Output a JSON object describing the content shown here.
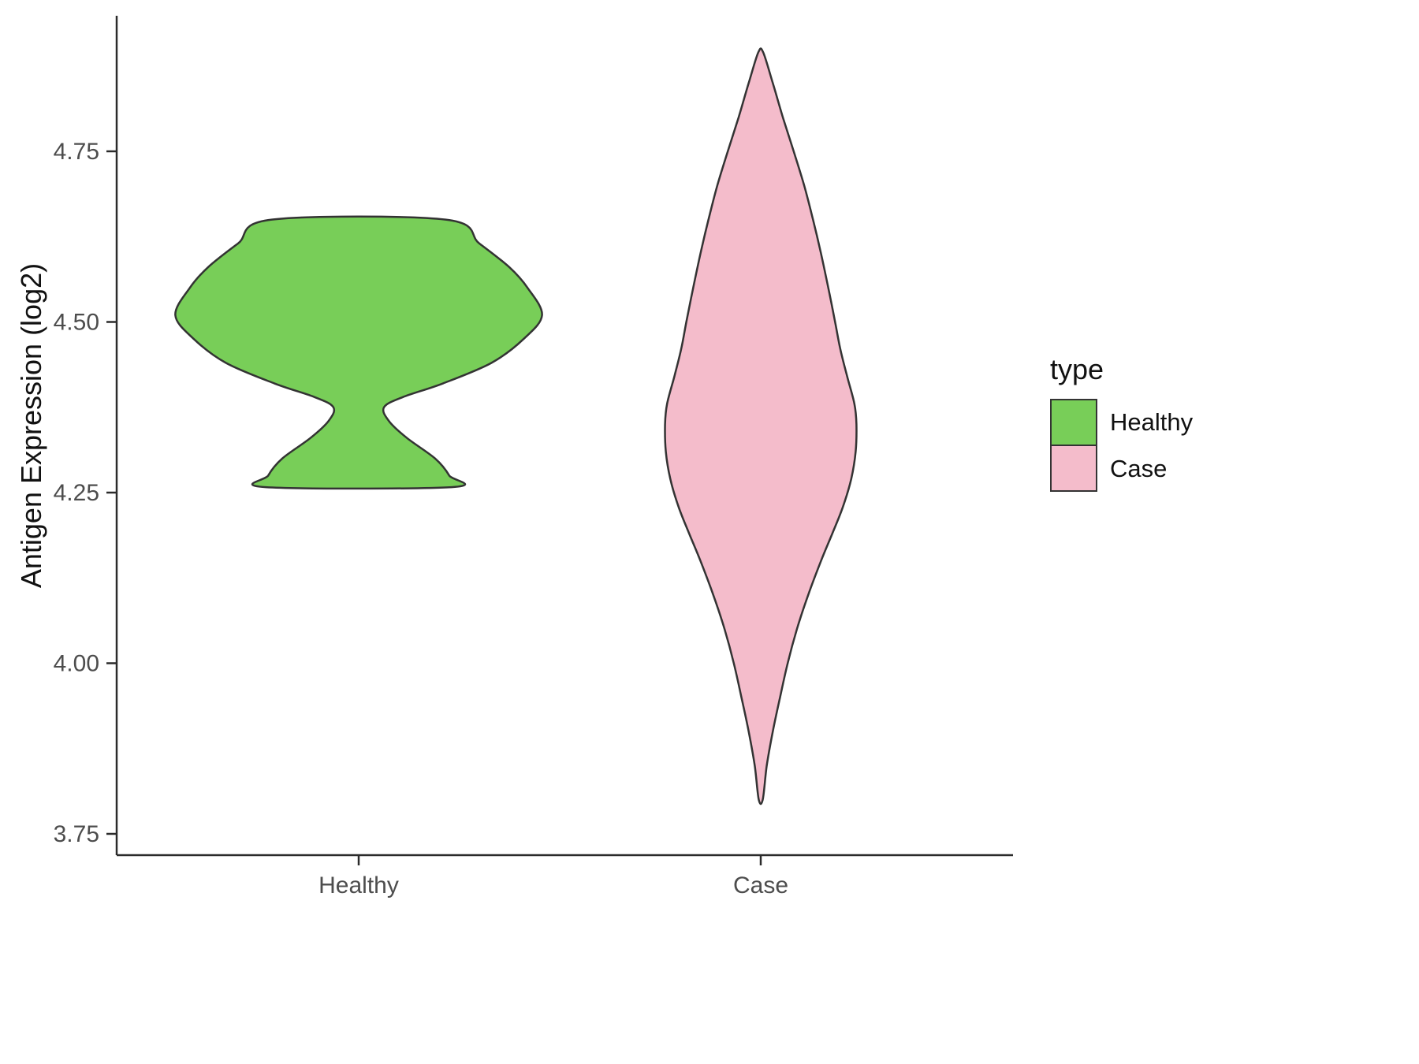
{
  "chart_data": {
    "type": "violin",
    "title": "",
    "xlabel": "",
    "ylabel": "Antigen Expression (log2)",
    "categories": [
      "Healthy",
      "Case"
    ],
    "y_ticks": [
      3.75,
      4.0,
      4.25,
      4.5,
      4.75
    ],
    "ylim": [
      3.72,
      4.95
    ],
    "grid": false,
    "axis_color": "#2b2b2b",
    "tick_label_color": "#4d4d4d",
    "outline_color": "#333333",
    "legend": {
      "title": "type",
      "position": "right",
      "entries": [
        {
          "label": "Healthy",
          "color": "#78CE58"
        },
        {
          "label": "Case",
          "color": "#F4BCCB"
        }
      ]
    },
    "series": [
      {
        "name": "Healthy",
        "color": "#78CE58",
        "range": [
          4.26,
          4.65
        ],
        "profile": [
          [
            4.65,
            0.216
          ],
          [
            4.615,
            0.3
          ],
          [
            4.58,
            0.375
          ],
          [
            4.55,
            0.42
          ],
          [
            4.51,
            0.456
          ],
          [
            4.475,
            0.41
          ],
          [
            4.44,
            0.33
          ],
          [
            4.41,
            0.21
          ],
          [
            4.39,
            0.11
          ],
          [
            4.375,
            0.063
          ],
          [
            4.355,
            0.075
          ],
          [
            4.33,
            0.12
          ],
          [
            4.3,
            0.19
          ],
          [
            4.275,
            0.225
          ],
          [
            4.258,
            0.231
          ]
        ]
      },
      {
        "name": "Case",
        "color": "#F4BCCB",
        "range": [
          3.8,
          4.895
        ],
        "profile": [
          [
            4.895,
            0.006
          ],
          [
            4.85,
            0.03
          ],
          [
            4.8,
            0.055
          ],
          [
            4.75,
            0.082
          ],
          [
            4.7,
            0.108
          ],
          [
            4.65,
            0.13
          ],
          [
            4.6,
            0.15
          ],
          [
            4.55,
            0.168
          ],
          [
            4.5,
            0.185
          ],
          [
            4.46,
            0.198
          ],
          [
            4.42,
            0.215
          ],
          [
            4.38,
            0.233
          ],
          [
            4.35,
            0.238
          ],
          [
            4.31,
            0.236
          ],
          [
            4.27,
            0.225
          ],
          [
            4.23,
            0.205
          ],
          [
            4.19,
            0.178
          ],
          [
            4.15,
            0.15
          ],
          [
            4.1,
            0.118
          ],
          [
            4.05,
            0.09
          ],
          [
            4.0,
            0.067
          ],
          [
            3.95,
            0.048
          ],
          [
            3.9,
            0.03
          ],
          [
            3.85,
            0.015
          ],
          [
            3.8,
            0.005
          ]
        ]
      }
    ]
  }
}
